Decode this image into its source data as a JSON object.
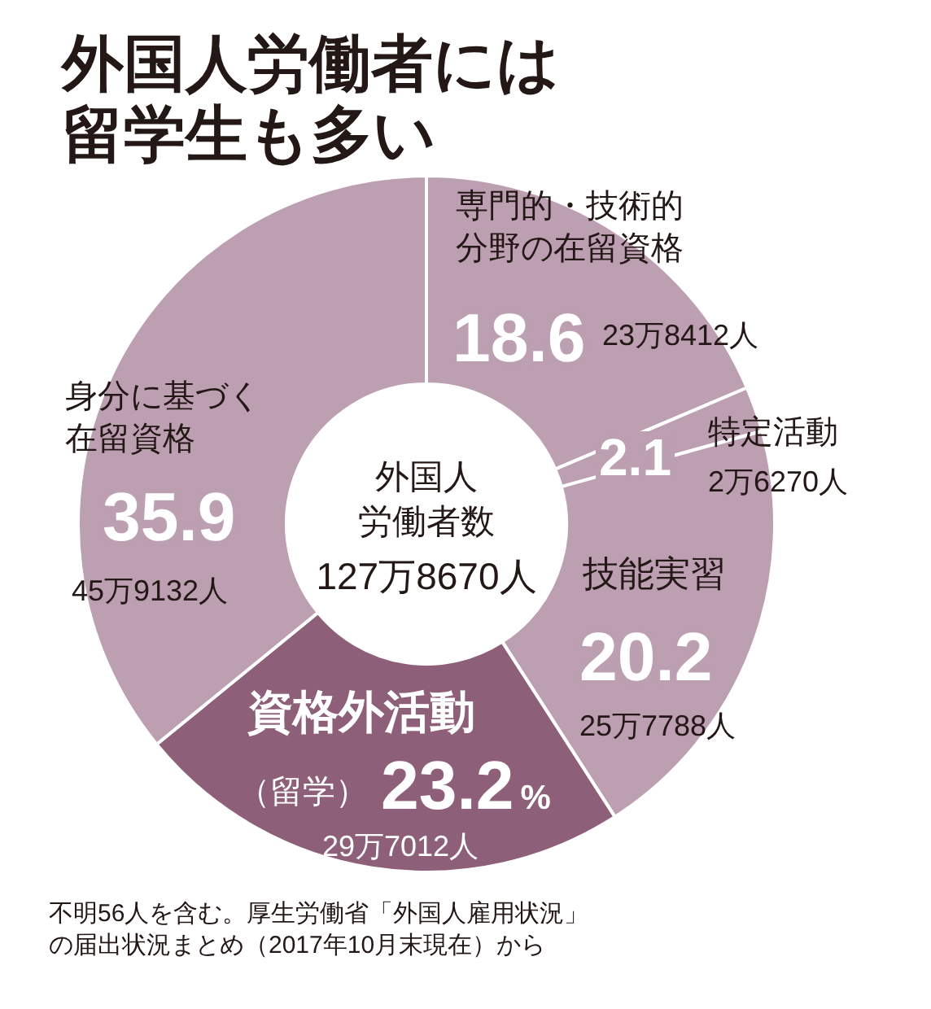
{
  "chart_data": {
    "type": "donut",
    "title": "外国人労働者には留学生も多い",
    "categories": [
      "専門的・技術的分野の在留資格",
      "特定活動",
      "技能実習",
      "資格外活動（留学）",
      "身分に基づく在留資格"
    ],
    "values": [
      18.6,
      2.1,
      20.2,
      23.2,
      35.9
    ],
    "value_labels": [
      "18.6",
      "2.1",
      "20.2",
      "23.2%",
      "35.9"
    ],
    "colors": [
      "#bc9fb1",
      "#bc9fb1",
      "#bc9fb1",
      "#8d5f79",
      "#bc9fb1"
    ],
    "annotations": [
      "23万8412人",
      "2万6270人",
      "25万7788人",
      "29万7012人",
      "45万9132人",
      "外国人労働者数",
      "127万8670人",
      "不明56人を含む。厚生労働省「外国人雇用状況」の届出状況まとめ（2017年10月末現在）から"
    ]
  }
}
